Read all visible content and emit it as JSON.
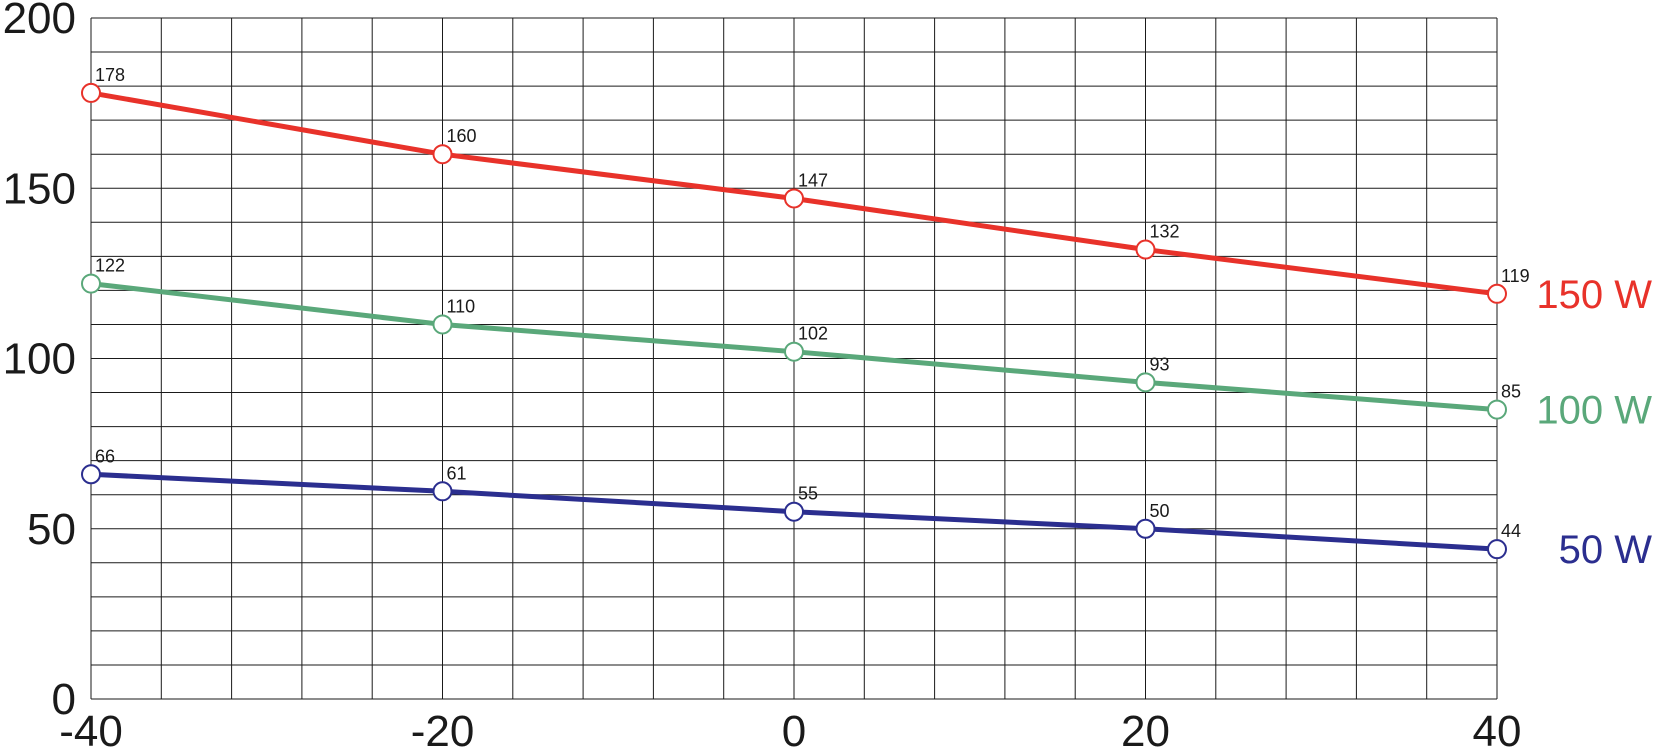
{
  "chart_data": {
    "type": "line",
    "title": "",
    "xlabel": "",
    "ylabel": "",
    "x": [
      -40,
      -20,
      0,
      20,
      40
    ],
    "xlim": [
      -40,
      40
    ],
    "ylim": [
      0,
      200
    ],
    "x_ticks": [
      "-40",
      "-20",
      "0",
      "20",
      "40"
    ],
    "y_ticks": [
      "0",
      "50",
      "100",
      "150",
      "200"
    ],
    "grid": true,
    "legend_position": "right, at line ends",
    "series": [
      {
        "name": "150 W",
        "color": "#e8322a",
        "values": [
          178,
          160,
          147,
          132,
          119
        ],
        "labels": [
          "178",
          "160",
          "147",
          "132",
          "119"
        ]
      },
      {
        "name": "100 W",
        "color": "#5aa87a",
        "values": [
          122,
          110,
          102,
          93,
          85
        ],
        "labels": [
          "122",
          "110",
          "102",
          "93",
          "85"
        ]
      },
      {
        "name": "50 W",
        "color": "#2b2e8f",
        "values": [
          66,
          61,
          55,
          50,
          44
        ],
        "labels": [
          "66",
          "61",
          "55",
          "50",
          "44"
        ]
      }
    ]
  }
}
